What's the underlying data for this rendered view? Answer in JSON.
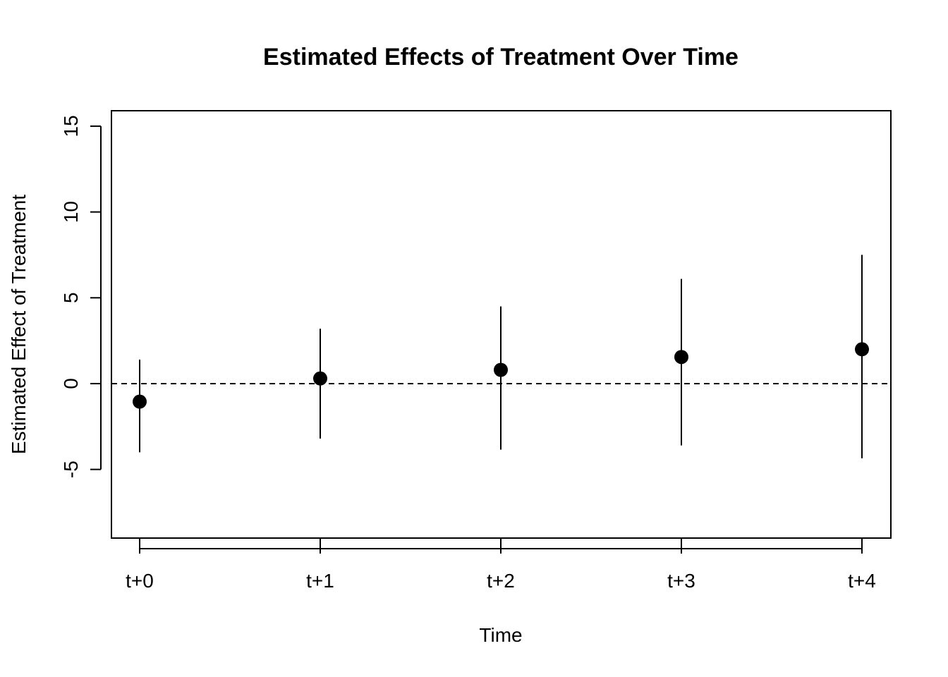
{
  "chart_data": {
    "type": "scatter",
    "title": "Estimated Effects of Treatment Over Time",
    "xlabel": "Time",
    "ylabel": "Estimated Effect of Treatment",
    "categories": [
      "t+0",
      "t+1",
      "t+2",
      "t+3",
      "t+4"
    ],
    "estimates": [
      -1.05,
      0.3,
      0.8,
      1.55,
      2.0
    ],
    "lower": [
      -4.0,
      -3.2,
      -3.85,
      -3.6,
      -4.35
    ],
    "upper": [
      1.4,
      3.2,
      4.5,
      6.1,
      7.5
    ],
    "ylim": [
      -9,
      15.9
    ],
    "yticks": [
      -5,
      0,
      5,
      10,
      15
    ],
    "reference_line": {
      "y": 0,
      "style": "dashed"
    },
    "grid": false,
    "legend": "none"
  }
}
